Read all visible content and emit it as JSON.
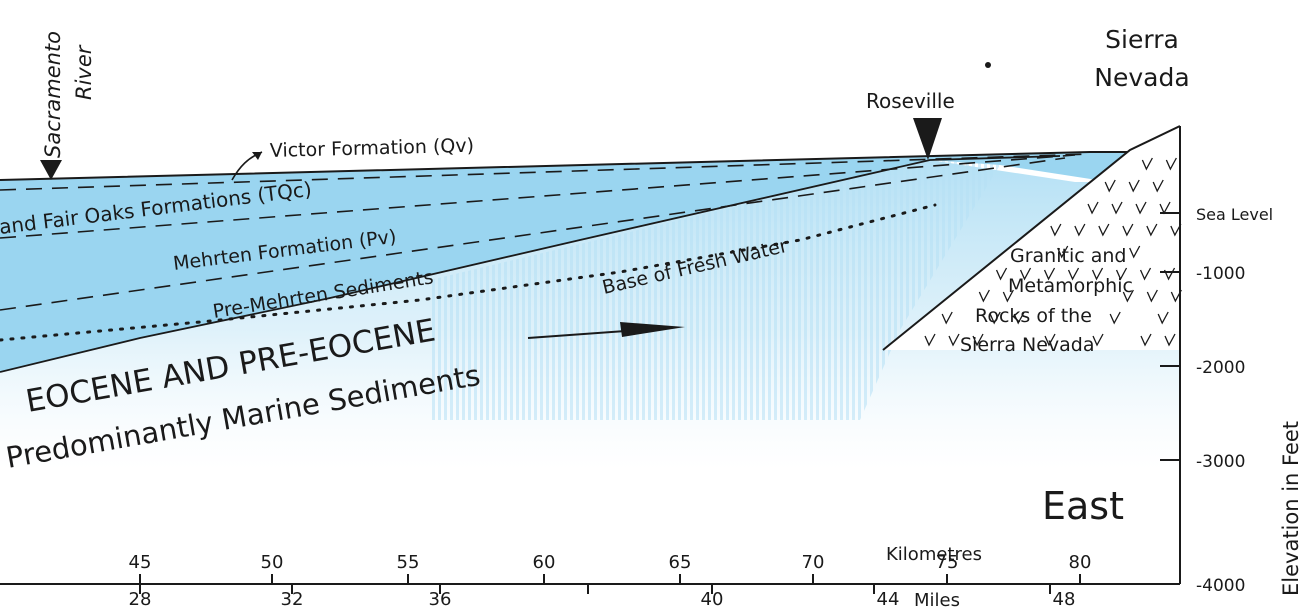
{
  "places": {
    "sacramento_river": [
      "Sacramento",
      "River"
    ],
    "roseville": "Roseville",
    "sierra_nevada": [
      "Sierra",
      "Nevada"
    ]
  },
  "units": {
    "victor": "Victor Formation (Qv)",
    "fair_oaks": "and Fair Oaks Formations (TQc)",
    "mehrten": "Mehrten Formation (Pv)",
    "pre_mehrten": "Pre-Mehrten Sediments",
    "fresh_water": "Base of Fresh Water",
    "eocene": [
      "EOCENE AND PRE-EOCENE",
      "Predominantly Marine Sediments"
    ],
    "granitic": [
      "Granitic and",
      "Metamorphic",
      "Rocks of the",
      "Sierra Nevada"
    ]
  },
  "direction": "East",
  "elevation_axis": {
    "title": "Elevation in Feet",
    "ticks": [
      "Sea Level",
      "-1000",
      "-2000",
      "-3000",
      "-4000"
    ]
  },
  "km_axis": {
    "title": "Kilometres",
    "ticks": [
      "45",
      "50",
      "55",
      "60",
      "65",
      "70",
      "75",
      "80"
    ]
  },
  "miles_axis": {
    "title": "Miles",
    "ticks": [
      "28",
      "32",
      "36",
      "40",
      "44",
      "48"
    ]
  },
  "colors": {
    "aquifer": "#8fd0ee",
    "aquifer_light": "#c9e8f7",
    "ink": "#1a1a1a"
  }
}
